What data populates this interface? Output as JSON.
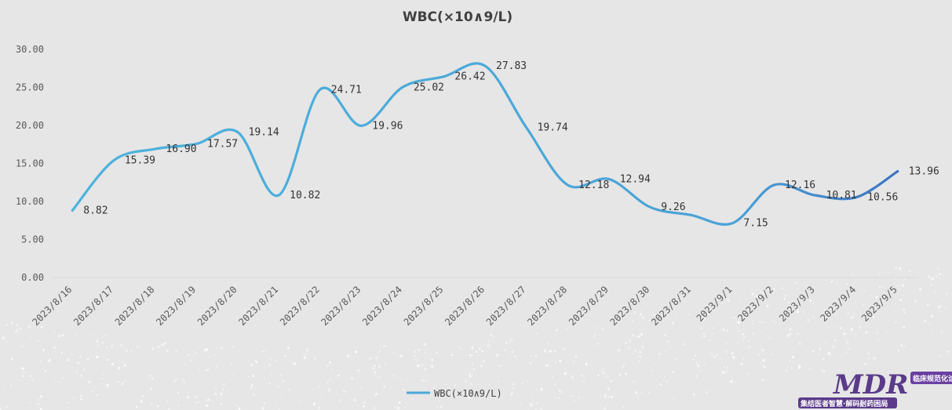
{
  "chart_data": {
    "type": "line",
    "title": "WBC(×10∧9/L)",
    "categories": [
      "2023/8/16",
      "2023/8/17",
      "2023/8/18",
      "2023/8/19",
      "2023/8/20",
      "2023/8/21",
      "2023/8/22",
      "2023/8/23",
      "2023/8/24",
      "2023/8/25",
      "2023/8/26",
      "2023/8/27",
      "2023/8/28",
      "2023/8/29",
      "2023/8/30",
      "2023/8/31",
      "2023/9/1",
      "2023/9/2",
      "2023/9/3",
      "2023/9/4",
      "2023/9/5"
    ],
    "series": [
      {
        "name": "WBC(×10∧9/L)",
        "values": [
          8.82,
          15.39,
          16.9,
          17.57,
          19.14,
          10.82,
          24.71,
          19.96,
          25.02,
          26.42,
          27.83,
          19.74,
          12.18,
          12.94,
          9.26,
          null,
          7.15,
          12.16,
          10.81,
          10.56,
          13.96
        ],
        "labels": [
          "8.82",
          "15.39",
          "16.90",
          "17.57",
          "19.14",
          "10.82",
          "24.71",
          "19.96",
          "25.02",
          "26.42",
          "27.83",
          "19.74",
          "12.18",
          "12.94",
          "9.26",
          "",
          "7.15",
          "12.16",
          "10.81",
          "10.56",
          "13.96"
        ]
      }
    ],
    "y_ticks": [
      "0.00",
      "5.00",
      "10.00",
      "15.00",
      "20.00",
      "25.00",
      "30.00"
    ],
    "ylim": [
      0,
      30
    ],
    "grid": false,
    "legend": "bottom",
    "colors": {
      "line": "#4aa8d8",
      "line_end": "#3f7fc4",
      "axis": "#d9d9d9"
    }
  },
  "watermark": {
    "logo": "MDR",
    "tag": "临床规范化诊",
    "slogan": "集结医者智慧·解码耐药困局"
  }
}
